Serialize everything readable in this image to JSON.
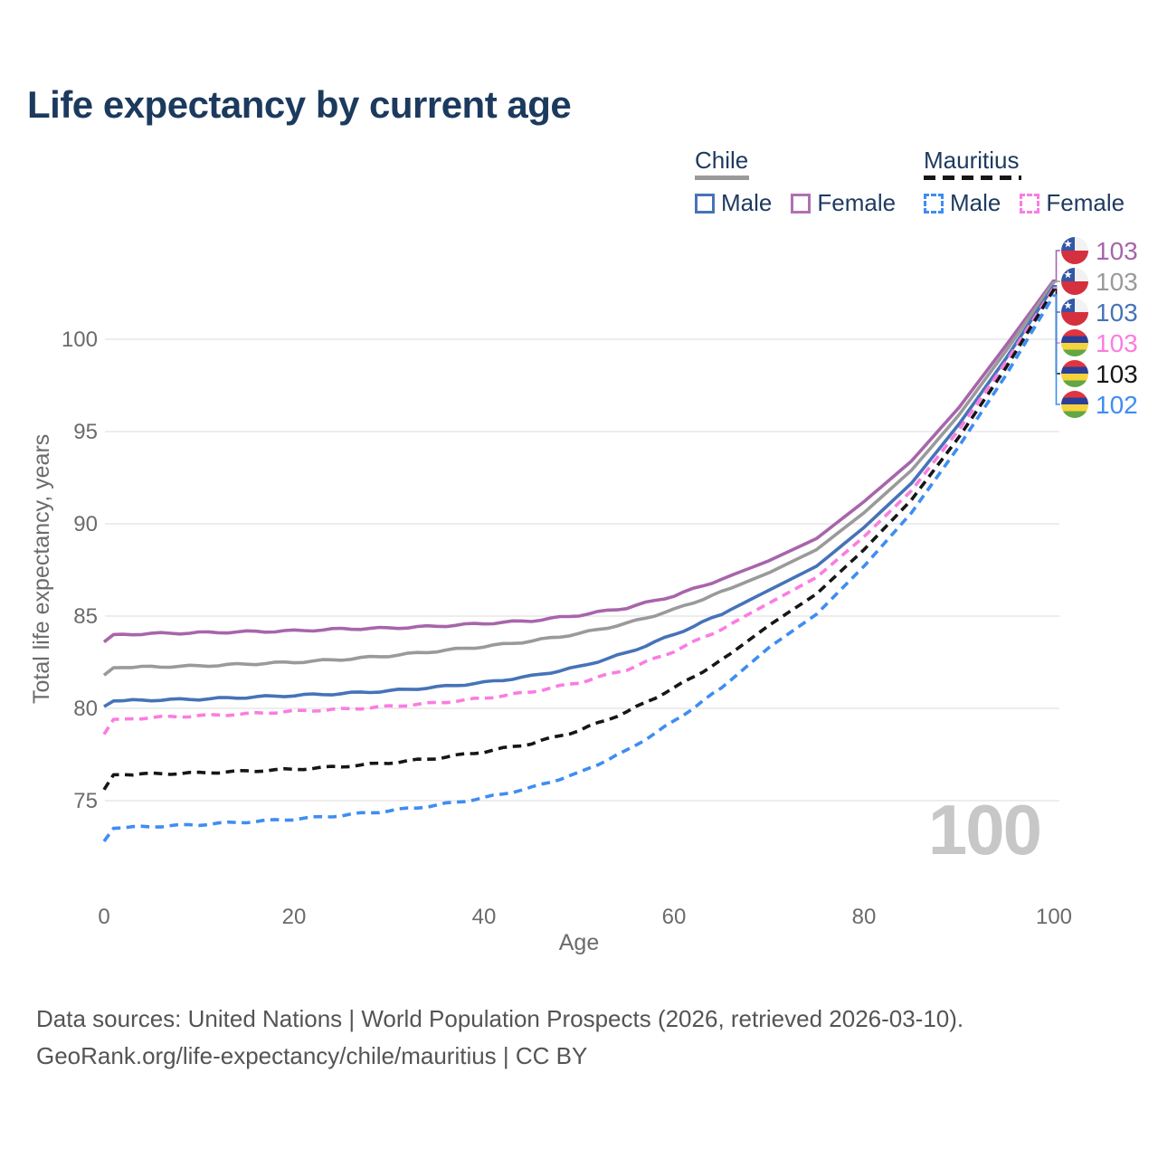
{
  "title": "Life expectancy by current age",
  "legend": {
    "chile": {
      "label": "Chile",
      "male_label": "Male",
      "female_label": "Female"
    },
    "mauritius": {
      "label": "Mauritius",
      "male_label": "Male",
      "female_label": "Female"
    }
  },
  "age_counter": "100",
  "footer": {
    "line1": "Data sources: United Nations | World Population Prospects (2026, retrieved 2026-03-10).",
    "line2": "GeoRank.org/life-expectancy/chile/mauritius | CC BY"
  },
  "chart_data": {
    "type": "line",
    "title": "Life expectancy by current age",
    "xlabel": "Age",
    "ylabel": "Total life expectancy, years",
    "xlim": [
      0,
      100
    ],
    "ylim": [
      71.5,
      104.5
    ],
    "x_ticks": [
      0,
      20,
      40,
      60,
      80,
      100
    ],
    "y_ticks": [
      75,
      80,
      85,
      90,
      95,
      100
    ],
    "grid": "horizontal-only",
    "legend_position": "top-right",
    "ages": [
      0,
      1,
      5,
      10,
      15,
      20,
      25,
      30,
      35,
      40,
      45,
      50,
      55,
      60,
      65,
      70,
      75,
      80,
      85,
      90,
      95,
      100
    ],
    "series": [
      {
        "name": "Chile Female",
        "country": "Chile",
        "sex": "Female",
        "style": "solid",
        "color": "#a765ab",
        "flag": "chile-flag-icon",
        "end_label": "103",
        "values": [
          83.6,
          84.0,
          84.05,
          84.1,
          84.15,
          84.2,
          84.3,
          84.35,
          84.45,
          84.6,
          84.75,
          85.05,
          85.45,
          86.1,
          87.0,
          88.0,
          89.2,
          91.2,
          93.4,
          96.3,
          99.7,
          103.2
        ]
      },
      {
        "name": "Chile Both sexes",
        "country": "Chile",
        "sex": "Both",
        "style": "solid",
        "color": "#9a9a9a",
        "flag": "chile-flag-icon",
        "end_label": "103",
        "values": [
          81.8,
          82.2,
          82.25,
          82.3,
          82.4,
          82.5,
          82.65,
          82.85,
          83.1,
          83.35,
          83.65,
          84.05,
          84.6,
          85.35,
          86.3,
          87.35,
          88.6,
          90.6,
          92.9,
          95.9,
          99.4,
          103.1
        ]
      },
      {
        "name": "Chile Male",
        "country": "Chile",
        "sex": "Male",
        "style": "solid",
        "color": "#4673b8",
        "flag": "chile-flag-icon",
        "end_label": "103",
        "values": [
          80.1,
          80.4,
          80.45,
          80.5,
          80.6,
          80.7,
          80.8,
          80.95,
          81.15,
          81.4,
          81.75,
          82.25,
          83.0,
          84.0,
          85.1,
          86.4,
          87.7,
          89.8,
          92.2,
          95.4,
          99.0,
          102.9
        ]
      },
      {
        "name": "Mauritius Female",
        "country": "Mauritius",
        "sex": "Female",
        "style": "dashed",
        "color": "#fb7ce1",
        "flag": "mauritius-flag-icon",
        "end_label": "103",
        "values": [
          78.6,
          79.4,
          79.5,
          79.6,
          79.7,
          79.85,
          79.95,
          80.1,
          80.3,
          80.55,
          80.9,
          81.4,
          82.1,
          83.1,
          84.3,
          85.7,
          87.1,
          89.3,
          91.8,
          95.1,
          98.8,
          102.8
        ]
      },
      {
        "name": "Mauritius Both sexes",
        "country": "Mauritius",
        "sex": "Both",
        "style": "dashed",
        "color": "#161616",
        "flag": "mauritius-flag-icon",
        "end_label": "103",
        "values": [
          75.6,
          76.4,
          76.45,
          76.5,
          76.6,
          76.7,
          76.85,
          77.05,
          77.3,
          77.65,
          78.1,
          78.8,
          79.8,
          81.1,
          82.6,
          84.5,
          86.2,
          88.6,
          91.3,
          94.7,
          98.5,
          102.7
        ]
      },
      {
        "name": "Mauritius Male",
        "country": "Mauritius",
        "sex": "Male",
        "style": "dashed",
        "color": "#3e8df2",
        "flag": "mauritius-flag-icon",
        "end_label": "102",
        "values": [
          72.8,
          73.5,
          73.6,
          73.7,
          73.85,
          74.0,
          74.2,
          74.45,
          74.75,
          75.15,
          75.7,
          76.5,
          77.7,
          79.3,
          81.1,
          83.3,
          85.1,
          87.7,
          90.6,
          94.2,
          98.1,
          102.4
        ]
      }
    ]
  }
}
